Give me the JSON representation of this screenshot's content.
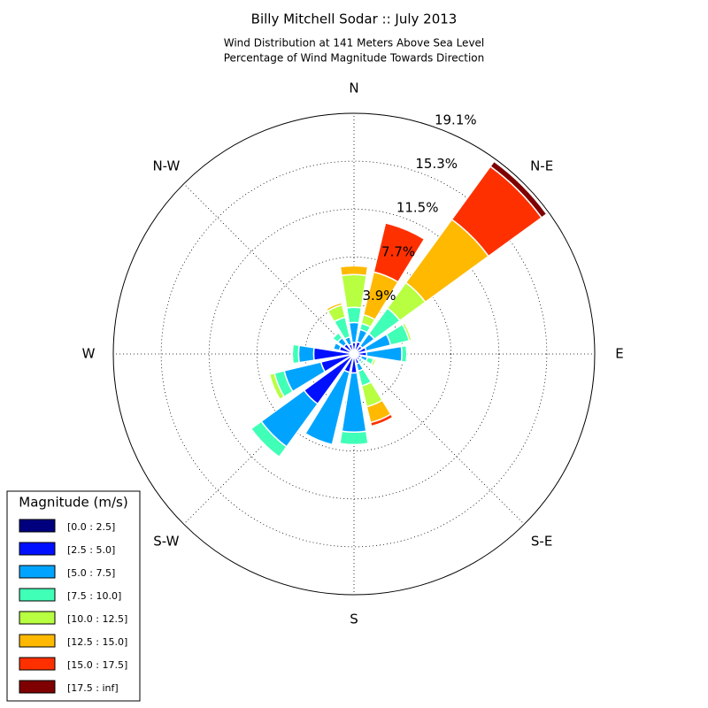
{
  "chart_data": {
    "type": "windrose",
    "title": "Billy Mitchell Sodar :: July 2013",
    "subtitle": [
      "Wind Distribution at 141 Meters Above Sea Level",
      "Percentage of Wind Magnitude Towards Direction"
    ],
    "categories": [
      "N",
      null,
      "N-E",
      null,
      "E",
      null,
      "S-E",
      null,
      "S",
      null,
      "S-W",
      null,
      "W",
      null,
      "N-W",
      null
    ],
    "series": [
      {
        "name": "[0.0 : 2.5]",
        "color": "#00007f",
        "values": [
          0.2,
          0.2,
          0.2,
          0.2,
          0.2,
          0.2,
          0.2,
          0.2,
          0.2,
          0.2,
          0.2,
          0.2,
          0.2,
          0.2,
          0.2,
          0.2
        ]
      },
      {
        "name": "[2.5 : 5.0]",
        "color": "#0010ff",
        "values": [
          0.7,
          0.8,
          0.6,
          0.8,
          0.8,
          0.4,
          0.4,
          0.6,
          1.3,
          1.3,
          4.7,
          2.5,
          3.0,
          1.0,
          0.8,
          0.6
        ]
      },
      {
        "name": "[5.0 : 7.5]",
        "color": "#00a4ff",
        "values": [
          1.6,
          1.0,
          1.2,
          2.0,
          2.8,
          0.5,
          0.2,
          0.6,
          4.7,
          5.9,
          4.2,
          3.0,
          1.2,
          0.5,
          0.6,
          0.6
        ]
      },
      {
        "name": "[7.5 : 10.0]",
        "color": "#40ffb7",
        "values": [
          1.2,
          0.5,
          2.5,
          1.5,
          0.4,
          0.5,
          0.2,
          1.2,
          1.0,
          0.1,
          1.0,
          0.8,
          0.5,
          0,
          0.5,
          1.6
        ]
      },
      {
        "name": "[10.0 : 12.5]",
        "color": "#b7ff40",
        "values": [
          2.6,
          0.7,
          2.5,
          0.2,
          0,
          0.2,
          0,
          1.7,
          0,
          0,
          0.1,
          0.4,
          0,
          0,
          0,
          1.0
        ]
      },
      {
        "name": "[12.5 : 15.0]",
        "color": "#ffb900",
        "values": [
          0.7,
          3.5,
          6.2,
          0.1,
          0,
          0,
          0,
          1.3,
          0,
          0,
          0,
          0.1,
          0,
          0,
          0,
          0.2
        ]
      },
      {
        "name": "[15.0 : 17.5]",
        "color": "#ff3000",
        "values": [
          0,
          4.0,
          5.2,
          0.05,
          0,
          0,
          0,
          0.3,
          0,
          0,
          0,
          0,
          0,
          0,
          0,
          0.1
        ]
      },
      {
        "name": "[17.5 : inf]",
        "color": "#7f0000",
        "values": [
          0,
          0.1,
          0.5,
          0,
          0,
          0,
          0,
          0.1,
          0,
          0,
          0,
          0,
          0,
          0,
          0,
          0
        ]
      }
    ],
    "rlim": [
      0,
      19.1
    ],
    "rticks": [
      {
        "value": 3.9,
        "label": "3.9%"
      },
      {
        "value": 7.7,
        "label": "7.7%"
      },
      {
        "value": 11.5,
        "label": "11.5%"
      },
      {
        "value": 15.3,
        "label": "15.3%"
      },
      {
        "value": 19.1,
        "label": "19.1%"
      }
    ],
    "grid": true,
    "legend_title": "Magnitude (m/s)",
    "legend_position": "lower left"
  }
}
